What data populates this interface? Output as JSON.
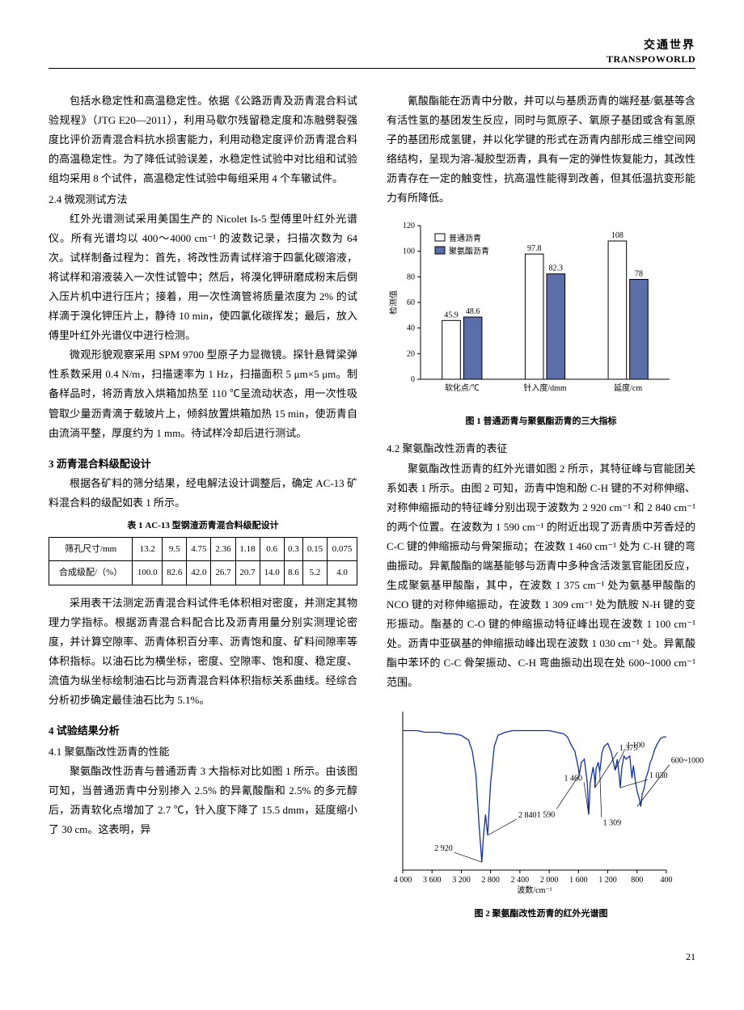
{
  "header": {
    "cn": "交通世界",
    "en": "TRANSPOWORLD"
  },
  "pageNumber": "21",
  "leftCol": {
    "p1": "包括水稳定性和高温稳定性。依据《公路沥青及沥青混合料试验规程》（JTG E20—2011），利用马歇尔残留稳定度和冻融劈裂强度比评价沥青混合料抗水损害能力，利用动稳定度评价沥青混合料的高温稳定性。为了降低试验误差，水稳定性试验中对比组和试验组均采用 8 个试件，高温稳定性试验中每组采用 4 个车辙试件。",
    "h24": "2.4  微观测试方法",
    "p2": "红外光谱测试采用美国生产的 Nicolet Is-5 型傅里叶红外光谱仪。所有光谱均以 400～4000 cm⁻¹ 的波数记录，扫描次数为 64 次。试样制备过程为：首先，将改性沥青试样溶于四氯化碳溶液，将试样和溶液装入一次性试管中；然后，将溴化钾研磨成粉末后倒入压片机中进行压片；接着，用一次性滴管将质量浓度为 2% 的试样滴于溴化钾压片上，静待 10 min，使四氯化碳挥发；最后，放入傅里叶红外光谱仪中进行检测。",
    "p3": "微观形貌观察采用 SPM 9700 型原子力显微镜。探针悬臂梁弹性系数采用 0.4 N/m，扫描速率为 1 Hz，扫描面积 5 μm×5 μm。制备样品时，将沥青放入烘箱加热至 110 ℃呈流动状态，用一次性吸管取少量沥青滴于载玻片上，倾斜放置烘箱加热 15 min，使沥青自由流淌平整，厚度约为 1 mm。待试样冷却后进行测试。",
    "h3": "3  沥青混合料级配设计",
    "p4": "根据各矿料的筛分结果，经电解法设计调整后，确定 AC-13 矿料混合料的级配如表 1 所示。",
    "table1": {
      "caption": "表 1  AC-13 型钢渣沥青混合料级配设计",
      "row1Label": "筛孔尺寸/mm",
      "row1": [
        "13.2",
        "9.5",
        "4.75",
        "2.36",
        "1.18",
        "0.6",
        "0.3",
        "0.15",
        "0.075"
      ],
      "row2Label": "合成级配/（%）",
      "row2": [
        "100.0",
        "82.6",
        "42.0",
        "26.7",
        "20.7",
        "14.0",
        "8.6",
        "5.2",
        "4.0"
      ]
    },
    "p5": "采用表干法测定沥青混合料试件毛体积相对密度，并测定其物理力学指标。根据沥青混合料配合比及沥青用量分别实测理论密度，并计算空隙率、沥青体积百分率、沥青饱和度、矿料间隙率等体积指标。以油石比为横坐标，密度、空隙率、饱和度、稳定度、流值为纵坐标绘制油石比与沥青混合料体积指标关系曲线。经综合分析初步确定最佳油石比为 5.1%。",
    "h4": "4  试验结果分析",
    "h41": "4.1  聚氨酯改性沥青的性能",
    "p6": "聚氨酯改性沥青与普通沥青 3 大指标对比如图 1 所示。由该图可知，当普通沥青中分别掺入 2.5% 的异氰酸酯和 2.5% 的多元醇后，沥青软化点增加了 2.7 ℃，针入度下降了 15.5 dmm，延度缩小了 30 cm。这表明，异"
  },
  "rightCol": {
    "p1": "氰酸酯能在沥青中分散，并可以与基质沥青的端羟基/氨基等含有活性氢的基团发生反应，同时与氮原子、氧原子基团或含有氢原子的基团形成氢键，并以化学键的形式在沥青内部形成三维空间网络结构，呈现为溶-凝胶型沥青，具有一定的弹性恢复能力，其改性沥青存在一定的触变性，抗高温性能得到改善，但其低温抗变形能力有所降低。",
    "fig1": {
      "caption": "图 1  普通沥青与聚氨酯沥青的三大指标",
      "yLabel": "检测值",
      "yMax": 120,
      "yStep": 20,
      "categories": [
        "软化点/℃",
        "针入度/dmm",
        "延度/cm"
      ],
      "legend": [
        "普通沥青",
        "聚氨酯沥青"
      ],
      "series1Color": "#ffffff",
      "series2Color": "#5a6eaa",
      "borderColor": "#000000",
      "axisColor": "#000000",
      "fontSize": 10,
      "data": [
        {
          "s1": 45.9,
          "s2": 48.6
        },
        {
          "s1": 97.8,
          "s2": 82.3
        },
        {
          "s1": 108,
          "s2": 78
        }
      ]
    },
    "h42": "4.2  聚氨酯改性沥青的表征",
    "p2": "聚氨酯改性沥青的红外光谱如图 2 所示，其特征峰与官能团关系如表 1 所示。由图 2 可知，沥青中饱和酚 C-H 键的不对称伸缩、对称伸缩振动的特征峰分别出现于波数为 2 920 cm⁻¹ 和 2 840 cm⁻¹ 的两个位置。在波数为 1 590 cm⁻¹ 的附近出现了沥青质中芳香烃的 C-C 键的伸缩振动与骨架振动；在波数 1 460 cm⁻¹ 处为 C-H 键的弯曲振动。异氰酸酯的端基能够与沥青中多种含活泼氢官能团反应，生成聚氨基甲酸酯，其中，在波数 1 375 cm⁻¹ 处为氨基甲酸酯的 NCO 键的对称伸缩振动，在波数 1 309 cm⁻¹ 处为酰胺 N-H 键的变形振动。酯基的 C-O 键的伸缩振动特征峰出现在波数 1 100 cm⁻¹ 处。沥青中亚砜基的伸缩振动峰出现在波数 1 030 cm⁻¹ 处。异氰酸酯中苯环的 C-C 骨架振动、C-H 弯曲振动出现在处 600~1000 cm⁻¹ 范围。",
    "fig2": {
      "caption": "图 2  聚氨酯改性沥青的红外光谱图",
      "xLabel": "波数/cm⁻¹",
      "xMin": 400,
      "xMax": 4000,
      "xStep": 400,
      "lineColor": "#1030b0",
      "labelColor": "#000000",
      "axisColor": "#000000",
      "fontSize": 10,
      "peakLabels": [
        "2 920",
        "2 840",
        "1 590",
        "1 460",
        "1 375",
        "1 309",
        "1 100",
        "1 030",
        "600~1000"
      ],
      "spectrum": [
        [
          4000,
          88
        ],
        [
          3900,
          88
        ],
        [
          3800,
          88
        ],
        [
          3700,
          87
        ],
        [
          3600,
          87
        ],
        [
          3500,
          87
        ],
        [
          3400,
          86
        ],
        [
          3300,
          86
        ],
        [
          3200,
          85
        ],
        [
          3100,
          82
        ],
        [
          3050,
          75
        ],
        [
          3000,
          60
        ],
        [
          2960,
          30
        ],
        [
          2920,
          5
        ],
        [
          2900,
          20
        ],
        [
          2870,
          35
        ],
        [
          2840,
          22
        ],
        [
          2800,
          55
        ],
        [
          2750,
          78
        ],
        [
          2700,
          85
        ],
        [
          2600,
          87
        ],
        [
          2500,
          88
        ],
        [
          2400,
          88
        ],
        [
          2300,
          88
        ],
        [
          2200,
          88
        ],
        [
          2100,
          88
        ],
        [
          2000,
          88
        ],
        [
          1900,
          87
        ],
        [
          1800,
          86
        ],
        [
          1750,
          84
        ],
        [
          1700,
          79
        ],
        [
          1650,
          75
        ],
        [
          1600,
          64
        ],
        [
          1590,
          60
        ],
        [
          1560,
          68
        ],
        [
          1520,
          70
        ],
        [
          1480,
          55
        ],
        [
          1460,
          35
        ],
        [
          1440,
          55
        ],
        [
          1400,
          65
        ],
        [
          1380,
          58
        ],
        [
          1375,
          52
        ],
        [
          1360,
          64
        ],
        [
          1330,
          68
        ],
        [
          1309,
          62
        ],
        [
          1280,
          74
        ],
        [
          1250,
          78
        ],
        [
          1200,
          80
        ],
        [
          1150,
          74
        ],
        [
          1100,
          63
        ],
        [
          1070,
          70
        ],
        [
          1050,
          62
        ],
        [
          1030,
          52
        ],
        [
          1010,
          64
        ],
        [
          980,
          72
        ],
        [
          950,
          70
        ],
        [
          900,
          72
        ],
        [
          870,
          58
        ],
        [
          850,
          66
        ],
        [
          820,
          55
        ],
        [
          800,
          50
        ],
        [
          770,
          45
        ],
        [
          750,
          40
        ],
        [
          730,
          48
        ],
        [
          700,
          52
        ],
        [
          680,
          58
        ],
        [
          650,
          62
        ],
        [
          620,
          68
        ],
        [
          600,
          70
        ],
        [
          560,
          76
        ],
        [
          520,
          80
        ],
        [
          480,
          83
        ],
        [
          440,
          84
        ],
        [
          400,
          84
        ]
      ]
    }
  }
}
